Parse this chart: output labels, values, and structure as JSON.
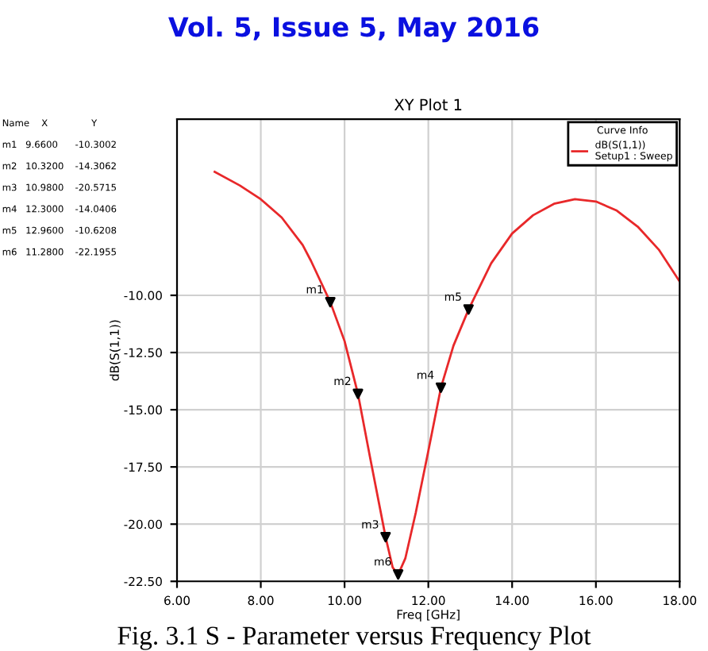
{
  "chart_data": {
    "type": "line",
    "title": "Vol. 5, Issue 5, May 2016",
    "subtitle": "XY Plot 1",
    "xlabel": "Freq [GHz]",
    "ylabel": "dB(S(1,1))",
    "legend_title": "Curve Info",
    "series": [
      {
        "name": "dB(S(1,1))\nSetup1 : Sweep",
        "color": "#e8282a",
        "x": [
          6.9,
          7.5,
          8,
          8.5,
          9,
          9.2,
          9.66,
          10,
          10.32,
          10.6,
          10.98,
          11.15,
          11.28,
          11.45,
          11.7,
          12.0,
          12.3,
          12.6,
          12.96,
          13.5,
          14,
          14.5,
          15,
          15.5,
          16,
          16.5,
          17,
          17.5,
          18
        ],
        "values": [
          -4.6,
          -5.2,
          -5.8,
          -6.6,
          -7.8,
          -8.5,
          -10.3,
          -12.0,
          -14.31,
          -17.0,
          -20.57,
          -21.9,
          -22.2,
          -21.5,
          -19.5,
          -16.8,
          -14.04,
          -12.2,
          -10.62,
          -8.6,
          -7.3,
          -6.5,
          -6.0,
          -5.8,
          -5.9,
          -6.3,
          -7.0,
          -8.0,
          -9.4
        ]
      },
      {
        "color": "#000000",
        "type": "scatter",
        "marker": "triangle",
        "x": [
          9.66,
          10.32,
          10.98,
          12.3,
          12.96,
          11.28
        ],
        "values": [
          -10.3,
          -14.31,
          -20.57,
          -14.04,
          -10.62,
          -22.2
        ]
      }
    ],
    "xlim": [
      6,
      18
    ],
    "ylim": [
      -22.5,
      -2.3
    ],
    "xticks": [
      {
        "value": 6,
        "label": "6.00"
      },
      {
        "value": 8,
        "label": "8.00"
      },
      {
        "value": 10,
        "label": "10.00"
      },
      {
        "value": 12,
        "label": "12.00"
      },
      {
        "value": 14,
        "label": "14.00"
      },
      {
        "value": 16,
        "label": "16.00"
      },
      {
        "value": 18,
        "label": "18.00"
      }
    ],
    "yticks": [
      {
        "value": -10,
        "label": "-10.00"
      },
      {
        "value": -12.5,
        "label": "-12.50"
      },
      {
        "value": -15,
        "label": "-15.00"
      },
      {
        "value": -17.5,
        "label": "-17.50"
      },
      {
        "value": -20,
        "label": "-20.00"
      },
      {
        "value": -22.5,
        "label": "-22.50"
      }
    ],
    "grid": true,
    "legend": "top right",
    "annotations": [
      {
        "text": "m1",
        "x": 9.66,
        "y": -10.3002
      },
      {
        "text": "m2",
        "x": 10.32,
        "y": -14.3062
      },
      {
        "text": "m3",
        "x": 10.98,
        "y": -20.5715
      },
      {
        "text": "m4",
        "x": 12.3,
        "y": -14.0406
      },
      {
        "text": "m5",
        "x": 12.96,
        "y": -10.6208
      },
      {
        "text": "m6",
        "x": 11.28,
        "y": -22.1955
      },
      "Name",
      "X",
      "Y",
      "m1",
      "9.6600",
      "-10.3002",
      "m2",
      "10.3200",
      "-14.3062",
      "m3",
      "10.9800",
      "-20.5715",
      "m4",
      "12.3000",
      "-14.0406",
      "m5",
      "12.9600",
      "-10.6208",
      "m6",
      "11.2800",
      "-22.1955",
      "Fig. 3.1 S - Parameter versus Frequency Plot"
    ]
  }
}
